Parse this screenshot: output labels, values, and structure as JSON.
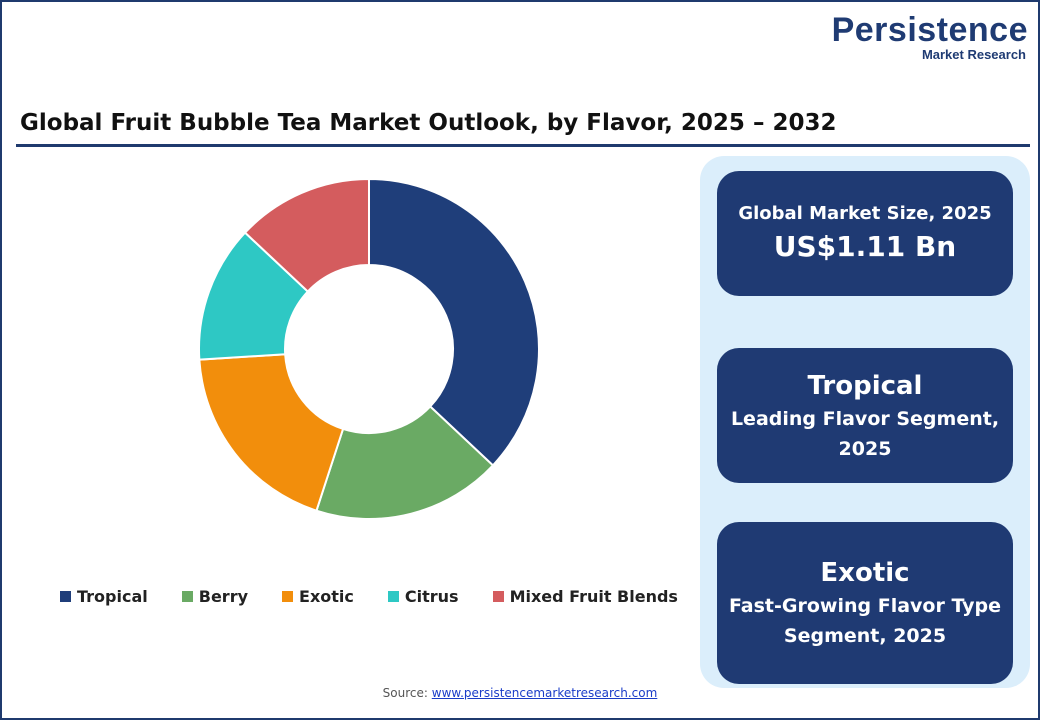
{
  "brand": {
    "name": "Persistence",
    "tagline": "Market Research",
    "color": "#1f3b73"
  },
  "title": "Global Fruit Bubble Tea Market Outlook, by Flavor, 2025 – 2032",
  "chart_data": {
    "type": "pie",
    "donut": true,
    "categories": [
      "Tropical",
      "Berry",
      "Exotic",
      "Citrus",
      "Mixed Fruit Blends"
    ],
    "values": [
      37,
      18,
      19,
      13,
      13
    ],
    "colors": [
      "#1f3e7a",
      "#6aaa64",
      "#f28e0c",
      "#2ec8c4",
      "#d45c5e"
    ],
    "legend_position": "bottom"
  },
  "cards": {
    "market_size_label": "Global Market Size, 2025",
    "market_size_value": "US$1.11 Bn",
    "leading_head": "Tropical",
    "leading_sub": "Leading Flavor Segment, 2025",
    "growing_head": "Exotic",
    "growing_sub": "Fast-Growing Flavor Type Segment, 2025"
  },
  "source": {
    "label": "Source:",
    "link_text": "www.persistencemarketresearch.com"
  }
}
